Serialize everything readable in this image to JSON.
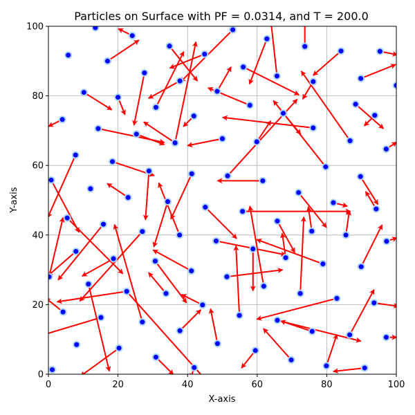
{
  "chart_data": {
    "type": "scatter",
    "title": "Particles on Surface with PF = 0.0314, and T = 200.0",
    "xlabel": "X-axis",
    "ylabel": "Y-axis",
    "xlim": [
      0,
      100
    ],
    "ylim": [
      0,
      100
    ],
    "xticks": [
      "0",
      "20",
      "40",
      "60",
      "80",
      "100"
    ],
    "yticks": [
      "0",
      "20",
      "40",
      "60",
      "80",
      "100"
    ],
    "grid": true,
    "marker_color": "#0000ff",
    "marker_edge_color": "#aad4ff",
    "arrow_color": "#ff0000",
    "particles": [
      {
        "x": 13.5,
        "y": 99.6,
        "dx": 0,
        "dy": 0
      },
      {
        "x": 24.1,
        "y": 97.3,
        "dx": -4,
        "dy": 2
      },
      {
        "x": 5.7,
        "y": 91.7,
        "dx": 0,
        "dy": 0
      },
      {
        "x": 17,
        "y": 90,
        "dx": 9,
        "dy": 6
      },
      {
        "x": 10.2,
        "y": 81,
        "dx": 8,
        "dy": -5
      },
      {
        "x": 20,
        "y": 79.6,
        "dx": 2,
        "dy": -5
      },
      {
        "x": 27.6,
        "y": 86.6,
        "dx": -3,
        "dy": -15
      },
      {
        "x": 34.8,
        "y": 94.3,
        "dx": 8,
        "dy": -10
      },
      {
        "x": 37.8,
        "y": 84.3,
        "dx": -9,
        "dy": -5
      },
      {
        "x": 30.9,
        "y": 76.7,
        "dx": 8,
        "dy": 16
      },
      {
        "x": 44.9,
        "y": 92,
        "dx": -10,
        "dy": -4
      },
      {
        "x": 53,
        "y": 99,
        "dx": -15,
        "dy": -15
      },
      {
        "x": 48.5,
        "y": 81.3,
        "dx": 4,
        "dy": 7
      },
      {
        "x": 56,
        "y": 88.3,
        "dx": 16,
        "dy": -8
      },
      {
        "x": 62.8,
        "y": 96.4,
        "dx": -5,
        "dy": -13
      },
      {
        "x": 65.7,
        "y": 85.7,
        "dx": -2,
        "dy": 18
      },
      {
        "x": 73.7,
        "y": 94.2,
        "dx": 0,
        "dy": 7
      },
      {
        "x": 84.1,
        "y": 92.9,
        "dx": -8,
        "dy": -7
      },
      {
        "x": 95.3,
        "y": 92.8,
        "dx": 5,
        "dy": -1
      },
      {
        "x": 89.8,
        "y": 85,
        "dx": 10,
        "dy": 4
      },
      {
        "x": 100,
        "y": 83,
        "dx": 0,
        "dy": 0
      },
      {
        "x": 4,
        "y": 73.2,
        "dx": -4,
        "dy": -2
      },
      {
        "x": 14.3,
        "y": 70.6,
        "dx": 19,
        "dy": -4
      },
      {
        "x": 25.3,
        "y": 69,
        "dx": 8,
        "dy": -3
      },
      {
        "x": 36.4,
        "y": 66.5,
        "dx": -9,
        "dy": 6
      },
      {
        "x": 36.4,
        "y": 66.5,
        "dx": 6,
        "dy": 29
      },
      {
        "x": 41.8,
        "y": 74.2,
        "dx": -3,
        "dy": -3
      },
      {
        "x": 50,
        "y": 67.7,
        "dx": -10,
        "dy": -2
      },
      {
        "x": 57.9,
        "y": 77.3,
        "dx": -12,
        "dy": 5
      },
      {
        "x": 59.9,
        "y": 66.8,
        "dx": 4,
        "dy": 6
      },
      {
        "x": 67.5,
        "y": 75,
        "dx": 5,
        "dy": -6
      },
      {
        "x": 76.1,
        "y": 70.8,
        "dx": -26,
        "dy": 3
      },
      {
        "x": 76.1,
        "y": 84.1,
        "dx": -3,
        "dy": -5
      },
      {
        "x": 86.7,
        "y": 67.1,
        "dx": -14,
        "dy": 20
      },
      {
        "x": 93.8,
        "y": 74.4,
        "dx": -3,
        "dy": -3
      },
      {
        "x": 88.3,
        "y": 77.6,
        "dx": 8,
        "dy": -7
      },
      {
        "x": 97.1,
        "y": 64.7,
        "dx": 3,
        "dy": 2
      },
      {
        "x": 7.8,
        "y": 63,
        "dx": -8,
        "dy": -18
      },
      {
        "x": 18.4,
        "y": 61.1,
        "dx": 12,
        "dy": -4
      },
      {
        "x": 28.9,
        "y": 58.4,
        "dx": -1,
        "dy": -14
      },
      {
        "x": 41.2,
        "y": 57.6,
        "dx": -6,
        "dy": -13
      },
      {
        "x": 51.5,
        "y": 57,
        "dx": 20,
        "dy": 22
      },
      {
        "x": 61.6,
        "y": 55.6,
        "dx": -13,
        "dy": 0
      },
      {
        "x": 79.7,
        "y": 59.6,
        "dx": -15,
        "dy": 19
      },
      {
        "x": 89.7,
        "y": 56.8,
        "dx": 5,
        "dy": -8
      },
      {
        "x": 0.8,
        "y": 55.8,
        "dx": 8,
        "dy": -15
      },
      {
        "x": 12.1,
        "y": 53.3,
        "dx": 0,
        "dy": 0
      },
      {
        "x": 22.9,
        "y": 50.8,
        "dx": -6,
        "dy": 4
      },
      {
        "x": 34.3,
        "y": 49.6,
        "dx": -4,
        "dy": -13
      },
      {
        "x": 45.1,
        "y": 48,
        "dx": 9,
        "dy": -9
      },
      {
        "x": 55.8,
        "y": 46.8,
        "dx": 31,
        "dy": 0
      },
      {
        "x": 71.9,
        "y": 52.2,
        "dx": 8,
        "dy": -10
      },
      {
        "x": 81.9,
        "y": 49.3,
        "dx": 4,
        "dy": -1
      },
      {
        "x": 94.2,
        "y": 47.5,
        "dx": -3,
        "dy": 5
      },
      {
        "x": 15.8,
        "y": 43.1,
        "dx": -13,
        "dy": -16
      },
      {
        "x": 5.4,
        "y": 44.9,
        "dx": 16,
        "dy": -16
      },
      {
        "x": 27,
        "y": 41,
        "dx": -18,
        "dy": -20
      },
      {
        "x": 37.7,
        "y": 40,
        "dx": -6,
        "dy": 15
      },
      {
        "x": 48.2,
        "y": 38.3,
        "dx": 20,
        "dy": -4
      },
      {
        "x": 65.8,
        "y": 44,
        "dx": 5,
        "dy": -9
      },
      {
        "x": 75.7,
        "y": 41.1,
        "dx": -1,
        "dy": 7
      },
      {
        "x": 85.5,
        "y": 40,
        "dx": 1,
        "dy": 7
      },
      {
        "x": 97.2,
        "y": 38.2,
        "dx": 3,
        "dy": 1
      },
      {
        "x": 7.9,
        "y": 35.3,
        "dx": -8,
        "dy": -7
      },
      {
        "x": 18.7,
        "y": 33.2,
        "dx": -9,
        "dy": -5
      },
      {
        "x": 30.7,
        "y": 32.5,
        "dx": 9,
        "dy": -12
      },
      {
        "x": 41.1,
        "y": 29.7,
        "dx": -11,
        "dy": 6
      },
      {
        "x": 58.8,
        "y": 36,
        "dx": 0,
        "dy": -12
      },
      {
        "x": 68.2,
        "y": 33.5,
        "dx": -1,
        "dy": 7
      },
      {
        "x": 78.9,
        "y": 31.7,
        "dx": -19,
        "dy": 7
      },
      {
        "x": 89.9,
        "y": 30.9,
        "dx": 6,
        "dy": 12
      },
      {
        "x": 0.2,
        "y": 28,
        "dx": 4,
        "dy": 17
      },
      {
        "x": 11.5,
        "y": 25.9,
        "dx": 6,
        "dy": -25
      },
      {
        "x": 22.5,
        "y": 23.8,
        "dx": 25,
        "dy": -28
      },
      {
        "x": 22.5,
        "y": 23.8,
        "dx": -20,
        "dy": -3
      },
      {
        "x": 33.8,
        "y": 23.2,
        "dx": -5,
        "dy": 6
      },
      {
        "x": 51.3,
        "y": 28,
        "dx": 16,
        "dy": 2
      },
      {
        "x": 61.9,
        "y": 25.3,
        "dx": -4,
        "dy": 23
      },
      {
        "x": 72.4,
        "y": 23.2,
        "dx": 1,
        "dy": 22
      },
      {
        "x": 82.9,
        "y": 21.8,
        "dx": -23,
        "dy": -6
      },
      {
        "x": 93.6,
        "y": 20.5,
        "dx": 7,
        "dy": -1
      },
      {
        "x": 4.2,
        "y": 17.9,
        "dx": -5,
        "dy": 4
      },
      {
        "x": 15.1,
        "y": 16.3,
        "dx": -20,
        "dy": -6
      },
      {
        "x": 27,
        "y": 15,
        "dx": -8,
        "dy": 28
      },
      {
        "x": 44.3,
        "y": 19.9,
        "dx": -6,
        "dy": 3
      },
      {
        "x": 54.9,
        "y": 16.9,
        "dx": -1,
        "dy": 20
      },
      {
        "x": 65.8,
        "y": 15.5,
        "dx": 24,
        "dy": -6
      },
      {
        "x": 75.8,
        "y": 12.3,
        "dx": -9,
        "dy": 3
      },
      {
        "x": 86.6,
        "y": 11.3,
        "dx": 7,
        "dy": 13
      },
      {
        "x": 97.1,
        "y": 10.6,
        "dx": 3,
        "dy": 0
      },
      {
        "x": 8.1,
        "y": 8.5,
        "dx": 0,
        "dy": 0
      },
      {
        "x": 20.3,
        "y": 7.5,
        "dx": -11,
        "dy": -8
      },
      {
        "x": 37.8,
        "y": 12.5,
        "dx": 6,
        "dy": 6
      },
      {
        "x": 48.6,
        "y": 8.8,
        "dx": -2,
        "dy": 10
      },
      {
        "x": 59.5,
        "y": 6.8,
        "dx": -4,
        "dy": -5
      },
      {
        "x": 69.8,
        "y": 4.1,
        "dx": -8,
        "dy": 9
      },
      {
        "x": 79.9,
        "y": 2.4,
        "dx": 3,
        "dy": 9
      },
      {
        "x": 90.9,
        "y": 1.8,
        "dx": -9,
        "dy": -1
      },
      {
        "x": 1.1,
        "y": 1.3,
        "dx": 0,
        "dy": 0
      },
      {
        "x": 30.9,
        "y": 4.9,
        "dx": 5,
        "dy": -5
      },
      {
        "x": 41.9,
        "y": 1.9,
        "dx": -1,
        "dy": -3
      }
    ]
  }
}
